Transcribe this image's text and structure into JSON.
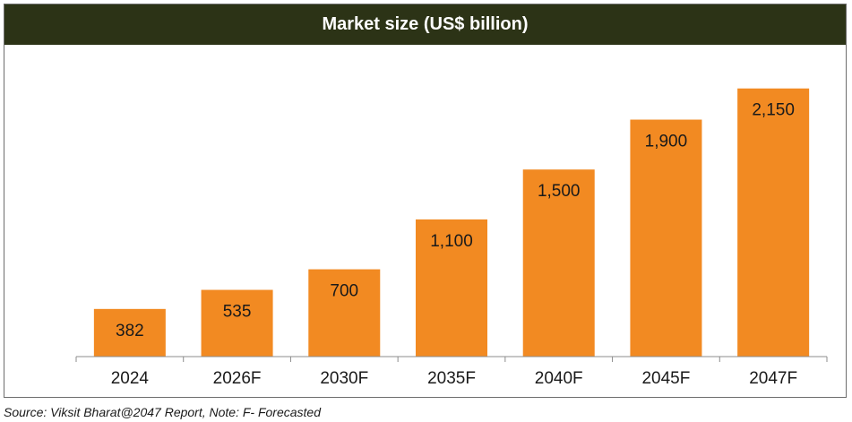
{
  "chart_data": {
    "type": "bar",
    "title": "Market size (US$ billion)",
    "categories": [
      "2024",
      "2026F",
      "2030F",
      "2035F",
      "2040F",
      "2045F",
      "2047F"
    ],
    "values": [
      382,
      535,
      700,
      1100,
      1500,
      1900,
      2150
    ],
    "data_labels": [
      "382",
      "535",
      "700",
      "1,100",
      "1,500",
      "1,900",
      "2,150"
    ],
    "xlabel": "",
    "ylabel": "",
    "ylim": [
      0,
      2500
    ],
    "grid": false,
    "legend": "none",
    "colors": {
      "bar": "#f28a22",
      "title_background": "#2c3316",
      "title_text": "#ffffff"
    }
  },
  "footer": {
    "source": "Source: Viksit Bharat@2047 Report, Note: F- Forecasted"
  }
}
